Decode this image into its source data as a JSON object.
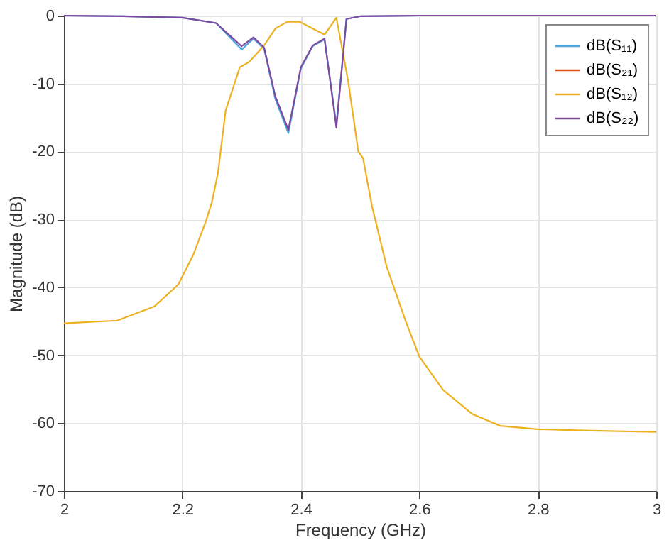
{
  "chart_data": {
    "type": "line",
    "xlabel": "Frequency (GHz)",
    "ylabel": "Magnitude (dB)",
    "xlim": [
      2,
      3
    ],
    "xticks": [
      2,
      2.2,
      2.4,
      2.6,
      2.8,
      3
    ],
    "ylim": [
      -70,
      0
    ],
    "yticks": [
      -70,
      -60,
      -50,
      -40,
      -30,
      -20,
      -10,
      0
    ],
    "grid": true,
    "legend": "top right",
    "line_style": "solid",
    "marker": "none",
    "series": [
      {
        "name": "dB(S₁₁)",
        "color": "#4da3dc",
        "x": [
          2,
          2.1,
          2.2,
          2.257,
          2.3,
          2.32,
          2.338,
          2.357,
          2.379,
          2.4,
          2.42,
          2.44,
          2.46,
          2.477,
          2.5,
          2.6
        ],
        "values": [
          0,
          -0.1,
          -0.3,
          -1.1,
          -5.0,
          -3.4,
          -4.9,
          -12.3,
          -17.3,
          -7.8,
          -4.5,
          -3.5,
          -16.0,
          -0.5,
          -0.1,
          0
        ]
      },
      {
        "name": "dB(S₂₁)",
        "color": "#d95319"
      },
      {
        "name": "dB(S₁₂)",
        "color": "#edb120",
        "x": [
          2,
          2.09,
          2.153,
          2.193,
          2.218,
          2.24,
          2.25,
          2.26,
          2.273,
          2.297,
          2.313,
          2.338,
          2.357,
          2.377,
          2.398,
          2.42,
          2.44,
          2.46,
          2.48,
          2.497,
          2.505,
          2.52,
          2.545,
          2.577,
          2.6,
          2.64,
          2.69,
          2.737,
          2.8,
          2.89,
          3
        ],
        "values": [
          -45.3,
          -44.9,
          -42.8,
          -39.6,
          -35.3,
          -30.2,
          -27.4,
          -23.2,
          -14.0,
          -7.6,
          -6.8,
          -4.4,
          -1.9,
          -0.9,
          -0.9,
          -1.9,
          -2.8,
          -0.3,
          -9.7,
          -20.0,
          -21.0,
          -28.0,
          -37.0,
          -45.0,
          -50.2,
          -55.1,
          -58.7,
          -60.4,
          -60.9,
          -61.1,
          -61.3
        ]
      },
      {
        "name": "dB(S₂₂)",
        "color": "#7e4a9e",
        "x": [
          2,
          2.1,
          2.2,
          2.257,
          2.3,
          2.32,
          2.338,
          2.357,
          2.379,
          2.4,
          2.42,
          2.44,
          2.46,
          2.477,
          2.5,
          2.6,
          2.8,
          3
        ],
        "values": [
          0,
          -0.1,
          -0.3,
          -1.1,
          -4.5,
          -3.2,
          -4.7,
          -11.9,
          -16.8,
          -7.6,
          -4.4,
          -3.4,
          -16.5,
          -0.5,
          -0.1,
          0,
          0,
          0
        ]
      }
    ]
  }
}
